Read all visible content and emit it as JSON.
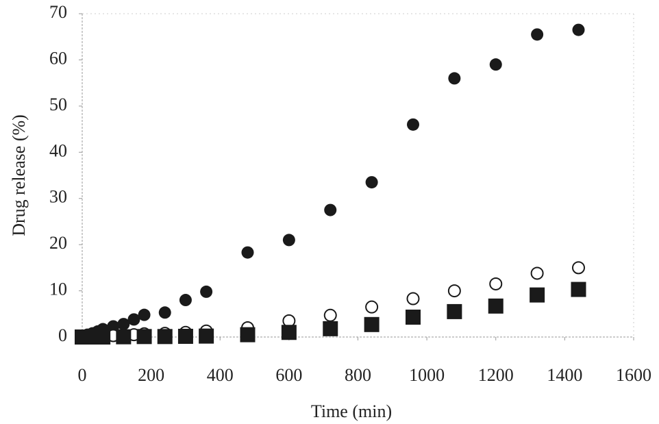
{
  "chart_data": {
    "type": "scatter",
    "x_label": "Time (min)",
    "y_label": "Drug release (%)",
    "xlim": [
      0,
      1600
    ],
    "ylim": [
      0,
      70
    ],
    "xticks": [
      0,
      200,
      400,
      600,
      800,
      1000,
      1200,
      1400,
      1600
    ],
    "yticks": [
      0,
      10,
      20,
      30,
      40,
      50,
      60,
      70
    ],
    "grid": false,
    "series": [
      {
        "marker": "circle",
        "color": "#1a1a1a",
        "x": [
          0,
          15,
          30,
          45,
          60,
          90,
          120,
          150,
          180,
          240,
          300,
          360,
          480,
          600,
          720,
          840,
          960,
          1080,
          1200,
          1320,
          1440
        ],
        "values": [
          0,
          0.5,
          0.8,
          1.2,
          1.7,
          2.3,
          2.8,
          3.8,
          4.8,
          5.3,
          8,
          9.8,
          18.3,
          21,
          27.5,
          33.5,
          46,
          56,
          59,
          65.5,
          66.5
        ]
      },
      {
        "marker": "open-circle",
        "color": "#1a1a1a",
        "x": [
          0,
          30,
          60,
          90,
          120,
          150,
          180,
          240,
          300,
          360,
          480,
          600,
          720,
          840,
          960,
          1080,
          1200,
          1320,
          1440
        ],
        "values": [
          0,
          0.1,
          0.2,
          0.3,
          0.4,
          0.5,
          0.7,
          0.8,
          1,
          1.3,
          2,
          3.5,
          4.7,
          6.5,
          8.3,
          10,
          11.5,
          13.8,
          15
        ]
      },
      {
        "marker": "square",
        "color": "#1a1a1a",
        "x": [
          0,
          30,
          60,
          120,
          180,
          240,
          300,
          360,
          480,
          600,
          720,
          840,
          960,
          1080,
          1200,
          1320,
          1440
        ],
        "values": [
          0,
          0,
          0,
          0.05,
          0.1,
          0.1,
          0.15,
          0.2,
          0.5,
          1,
          1.8,
          2.7,
          4.3,
          5.5,
          6.7,
          9.1,
          10.3
        ]
      }
    ]
  }
}
